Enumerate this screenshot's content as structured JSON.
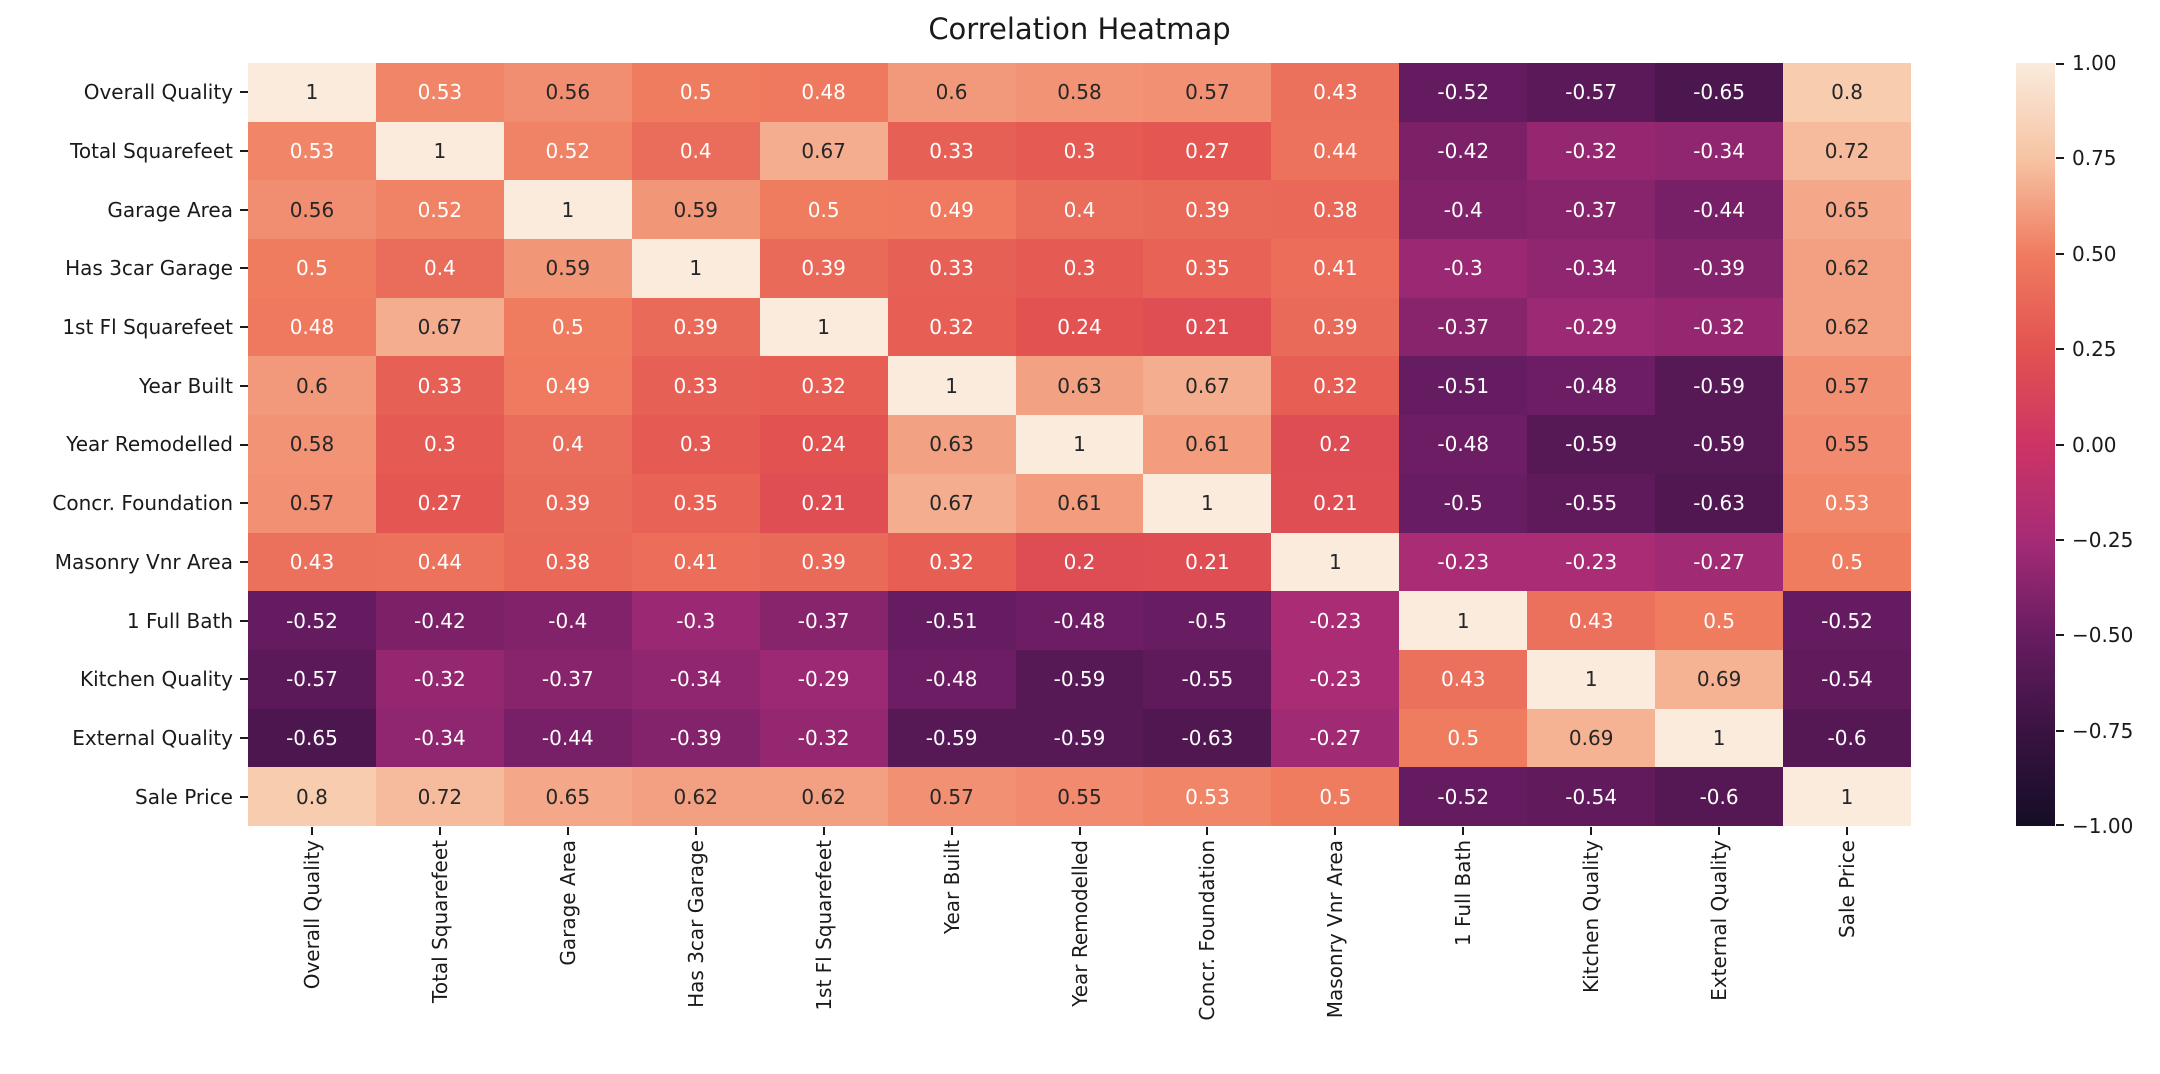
{
  "chart_data": {
    "type": "heatmap",
    "title": "Correlation Heatmap",
    "labels": [
      "Overall Quality",
      "Total Squarefeet",
      "Garage Area",
      "Has 3car Garage",
      "1st Fl Squarefeet",
      "Year Built",
      "Year Remodelled",
      "Concr. Foundation",
      "Masonry Vnr Area",
      "1 Full Bath",
      "Kitchen Quality",
      "External Quality",
      "Sale Price"
    ],
    "matrix": [
      [
        1,
        0.53,
        0.56,
        0.5,
        0.48,
        0.6,
        0.58,
        0.57,
        0.43,
        -0.52,
        -0.57,
        -0.65,
        0.8
      ],
      [
        0.53,
        1,
        0.52,
        0.4,
        0.67,
        0.33,
        0.3,
        0.27,
        0.44,
        -0.42,
        -0.32,
        -0.34,
        0.72
      ],
      [
        0.56,
        0.52,
        1,
        0.59,
        0.5,
        0.49,
        0.4,
        0.39,
        0.38,
        -0.4,
        -0.37,
        -0.44,
        0.65
      ],
      [
        0.5,
        0.4,
        0.59,
        1,
        0.39,
        0.33,
        0.3,
        0.35,
        0.41,
        -0.3,
        -0.34,
        -0.39,
        0.62
      ],
      [
        0.48,
        0.67,
        0.5,
        0.39,
        1,
        0.32,
        0.24,
        0.21,
        0.39,
        -0.37,
        -0.29,
        -0.32,
        0.62
      ],
      [
        0.6,
        0.33,
        0.49,
        0.33,
        0.32,
        1,
        0.63,
        0.67,
        0.32,
        -0.51,
        -0.48,
        -0.59,
        0.57
      ],
      [
        0.58,
        0.3,
        0.4,
        0.3,
        0.24,
        0.63,
        1,
        0.61,
        0.2,
        -0.48,
        -0.59,
        -0.59,
        0.55
      ],
      [
        0.57,
        0.27,
        0.39,
        0.35,
        0.21,
        0.67,
        0.61,
        1,
        0.21,
        -0.5,
        -0.55,
        -0.63,
        0.53
      ],
      [
        0.43,
        0.44,
        0.38,
        0.41,
        0.39,
        0.32,
        0.2,
        0.21,
        1,
        -0.23,
        -0.23,
        -0.27,
        0.5
      ],
      [
        -0.52,
        -0.42,
        -0.4,
        -0.3,
        -0.37,
        -0.51,
        -0.48,
        -0.5,
        -0.23,
        1,
        0.43,
        0.5,
        -0.52
      ],
      [
        -0.57,
        -0.32,
        -0.37,
        -0.34,
        -0.29,
        -0.48,
        -0.59,
        -0.55,
        -0.23,
        0.43,
        1,
        0.69,
        -0.54
      ],
      [
        -0.65,
        -0.34,
        -0.44,
        -0.39,
        -0.32,
        -0.59,
        -0.59,
        -0.63,
        -0.27,
        0.5,
        0.69,
        1,
        -0.6
      ],
      [
        0.8,
        0.72,
        0.65,
        0.62,
        0.62,
        0.57,
        0.55,
        0.53,
        0.5,
        -0.52,
        -0.54,
        -0.6,
        1
      ]
    ],
    "value_range": [
      -1,
      1
    ],
    "grid": false,
    "legend_position": "right-colorbar",
    "colorbar": {
      "tick_values": [
        1,
        0.75,
        0.5,
        0.25,
        0,
        -0.25,
        -0.5,
        -0.75,
        -1
      ],
      "tick_labels": [
        "1.00",
        "0.75",
        "0.50",
        "0.25",
        "0.00",
        "−0.25",
        "−0.50",
        "−0.75",
        "−1.00"
      ]
    },
    "colorscale": [
      {
        "v": -1.0,
        "c": "#140d26"
      },
      {
        "v": -0.75,
        "c": "#3a1341"
      },
      {
        "v": -0.5,
        "c": "#681c62"
      },
      {
        "v": -0.25,
        "c": "#a62b76"
      },
      {
        "v": 0.0,
        "c": "#cd3465"
      },
      {
        "v": 0.25,
        "c": "#e25350"
      },
      {
        "v": 0.5,
        "c": "#f07c60"
      },
      {
        "v": 0.75,
        "c": "#f6c4a4"
      },
      {
        "v": 1.0,
        "c": "#faebdd"
      }
    ],
    "annotation_colors": {
      "dark_text": "#262626",
      "light_text": "#ffffff",
      "luminance_threshold": 0.373
    }
  }
}
